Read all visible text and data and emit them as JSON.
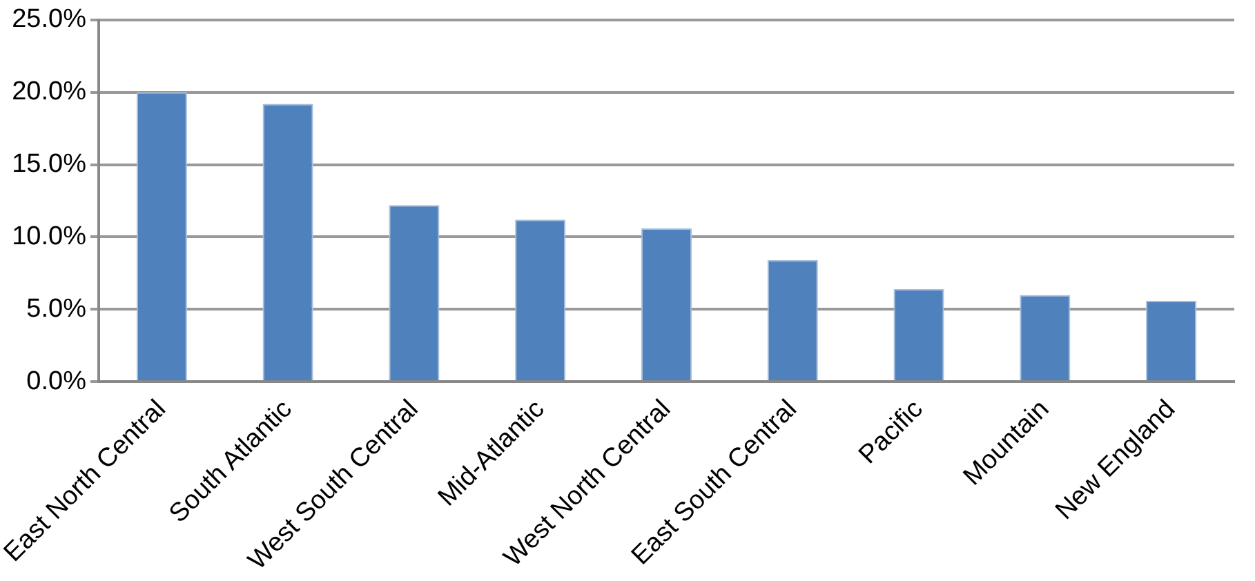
{
  "chart_data": {
    "type": "bar",
    "categories": [
      "East North Central",
      "South Atlantic",
      "West South Central",
      "Mid-Atlantic",
      "West North Central",
      "East South Central",
      "Pacific",
      "Mountain",
      "New England"
    ],
    "values": [
      20.0,
      19.2,
      12.2,
      11.2,
      10.6,
      8.4,
      6.4,
      6.0,
      5.6
    ],
    "color": "#4f81bd",
    "ylim": [
      0,
      25
    ],
    "yticks": [
      {
        "value": 0,
        "label": "0.0%"
      },
      {
        "value": 5,
        "label": "5.0%"
      },
      {
        "value": 10,
        "label": "10.0%"
      },
      {
        "value": 15,
        "label": "15.0%"
      },
      {
        "value": 20,
        "label": "20.0%"
      },
      {
        "value": 25,
        "label": "25.0%"
      }
    ],
    "grid": "y",
    "legend": false
  }
}
